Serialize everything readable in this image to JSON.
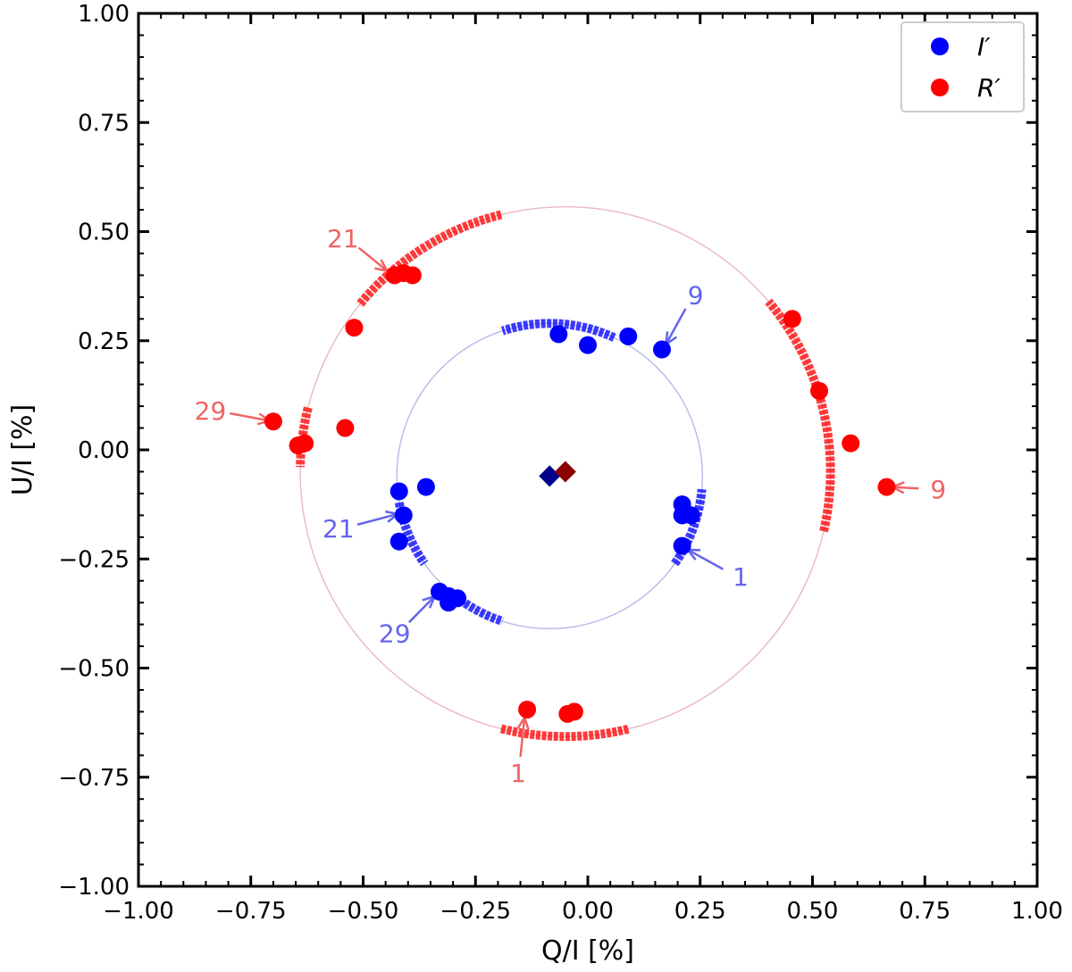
{
  "chart_data": {
    "type": "scatter",
    "title": "",
    "xlabel": "Q/I [%]",
    "ylabel": "U/I  [%]",
    "xlim": [
      -1.0,
      1.0
    ],
    "ylim": [
      -1.0,
      1.0
    ],
    "xticks": [
      -1.0,
      -0.75,
      -0.5,
      -0.25,
      0.0,
      0.25,
      0.5,
      0.75,
      1.0
    ],
    "yticks": [
      -1.0,
      -0.75,
      -0.5,
      -0.25,
      0.0,
      0.25,
      0.5,
      0.75,
      1.0
    ],
    "xtick_labels": [
      "−1.00",
      "−0.75",
      "−0.50",
      "−0.25",
      "0.00",
      "0.25",
      "0.50",
      "0.75",
      "1.00"
    ],
    "ytick_labels": [
      "−1.00",
      "−0.75",
      "−0.50",
      "−0.25",
      "0.00",
      "0.25",
      "0.50",
      "0.75",
      "1.00"
    ],
    "grid": false,
    "legend_position": "top-right",
    "series": [
      {
        "name": "I′",
        "color": "#0000ff",
        "points": [
          [
            0.21,
            -0.22
          ],
          [
            0.21,
            -0.15
          ],
          [
            0.23,
            -0.15
          ],
          [
            0.21,
            -0.125
          ],
          [
            -0.065,
            0.265
          ],
          [
            0.0,
            0.24
          ],
          [
            0.09,
            0.26
          ],
          [
            0.165,
            0.23
          ],
          [
            -0.41,
            -0.15
          ],
          [
            -0.42,
            -0.095
          ],
          [
            -0.36,
            -0.085
          ],
          [
            -0.42,
            -0.21
          ],
          [
            -0.33,
            -0.325
          ],
          [
            -0.31,
            -0.335
          ],
          [
            -0.31,
            -0.35
          ],
          [
            -0.29,
            -0.34
          ]
        ],
        "circle": {
          "center": [
            -0.085,
            -0.06
          ],
          "radius": 0.34
        },
        "arcs_deg": [
          [
            -35,
            -5
          ],
          [
            65,
            108
          ],
          [
            190,
            215
          ],
          [
            232,
            252
          ]
        ],
        "mean": [
          -0.085,
          -0.06
        ]
      },
      {
        "name": "R′",
        "color": "#ff0000",
        "points": [
          [
            -0.135,
            -0.595
          ],
          [
            -0.045,
            -0.605
          ],
          [
            -0.03,
            -0.6
          ],
          [
            0.455,
            0.3
          ],
          [
            0.515,
            0.135
          ],
          [
            0.585,
            0.015
          ],
          [
            0.665,
            -0.085
          ],
          [
            -0.43,
            0.4
          ],
          [
            -0.41,
            0.405
          ],
          [
            -0.39,
            0.4
          ],
          [
            -0.52,
            0.28
          ],
          [
            -0.645,
            0.01
          ],
          [
            -0.63,
            0.015
          ],
          [
            -0.7,
            0.065
          ],
          [
            -0.54,
            0.05
          ]
        ],
        "circle": {
          "center": [
            -0.05,
            -0.05
          ],
          "radius": 0.59
        },
        "arcs_deg": [
          [
            -13,
            40
          ],
          [
            104,
            141
          ],
          [
            166,
            179
          ],
          [
            256,
            284
          ]
        ],
        "mean": [
          -0.05,
          -0.05
        ]
      }
    ],
    "annotations": [
      {
        "text": "1",
        "series": "I′",
        "xy": [
          0.215,
          -0.225
        ],
        "xytext": [
          0.34,
          -0.29
        ]
      },
      {
        "text": "9",
        "series": "I′",
        "xy": [
          0.17,
          0.235
        ],
        "xytext": [
          0.24,
          0.355
        ]
      },
      {
        "text": "21",
        "series": "I′",
        "xy": [
          -0.415,
          -0.145
        ],
        "xytext": [
          -0.555,
          -0.18
        ]
      },
      {
        "text": "29",
        "series": "I′",
        "xy": [
          -0.335,
          -0.33
        ],
        "xytext": [
          -0.43,
          -0.42
        ]
      },
      {
        "text": "1",
        "series": "R′",
        "xy": [
          -0.14,
          -0.605
        ],
        "xytext": [
          -0.155,
          -0.74
        ]
      },
      {
        "text": "9",
        "series": "R′",
        "xy": [
          0.67,
          -0.085
        ],
        "xytext": [
          0.78,
          -0.09
        ]
      },
      {
        "text": "21",
        "series": "R′",
        "xy": [
          -0.44,
          0.405
        ],
        "xytext": [
          -0.545,
          0.485
        ]
      },
      {
        "text": "29",
        "series": "R′",
        "xy": [
          -0.7,
          0.065
        ],
        "xytext": [
          -0.84,
          0.09
        ]
      }
    ]
  }
}
